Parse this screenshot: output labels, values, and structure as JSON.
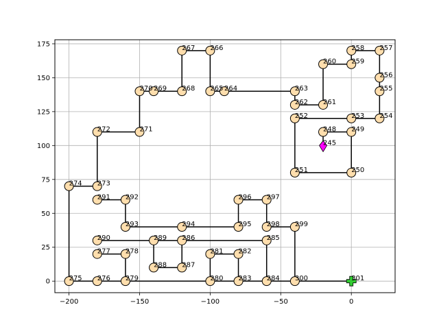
{
  "chart_data": {
    "type": "scatter",
    "title": "",
    "xlabel": "",
    "ylabel": "",
    "xlim": [
      -210,
      31
    ],
    "ylim": [
      -8.5,
      178
    ],
    "grid": true,
    "x_ticks": [
      -200,
      -150,
      -100,
      -50,
      0
    ],
    "y_ticks": [
      0,
      25,
      50,
      75,
      100,
      125,
      150,
      175
    ],
    "x_tick_labels": [
      "−200",
      "−150",
      "−100",
      "−50",
      "0"
    ],
    "y_tick_labels": [
      "0",
      "25",
      "50",
      "75",
      "100",
      "125",
      "150",
      "175"
    ],
    "colors": {
      "node_fill": "#ffdead",
      "edge": "#000000",
      "start_marker": "#ff00ff",
      "end_marker": "#33cc33",
      "grid": "#b0b0b0"
    },
    "path_points": [
      {
        "id": "245",
        "x": -20,
        "y": 100
      },
      {
        "id": "248",
        "x": -20,
        "y": 110
      },
      {
        "id": "249",
        "x": 0,
        "y": 110
      },
      {
        "id": "250",
        "x": 0,
        "y": 80
      },
      {
        "id": "251",
        "x": -40,
        "y": 80
      },
      {
        "id": "252",
        "x": -40,
        "y": 120
      },
      {
        "id": "253",
        "x": 0,
        "y": 120
      },
      {
        "id": "254",
        "x": 20,
        "y": 120
      },
      {
        "id": "255",
        "x": 20,
        "y": 140
      },
      {
        "id": "256",
        "x": 20,
        "y": 150
      },
      {
        "id": "257",
        "x": 20,
        "y": 170
      },
      {
        "id": "258",
        "x": 0,
        "y": 170
      },
      {
        "id": "259",
        "x": 0,
        "y": 160
      },
      {
        "id": "260",
        "x": -20,
        "y": 160
      },
      {
        "id": "261",
        "x": -20,
        "y": 130
      },
      {
        "id": "262",
        "x": -40,
        "y": 130
      },
      {
        "id": "263",
        "x": -40,
        "y": 140
      },
      {
        "id": "264",
        "x": -90,
        "y": 140
      },
      {
        "id": "265",
        "x": -100,
        "y": 140
      },
      {
        "id": "266",
        "x": -100,
        "y": 170
      },
      {
        "id": "267",
        "x": -120,
        "y": 170
      },
      {
        "id": "268",
        "x": -120,
        "y": 140
      },
      {
        "id": "269",
        "x": -140,
        "y": 140
      },
      {
        "id": "270",
        "x": -150,
        "y": 140
      },
      {
        "id": "271",
        "x": -150,
        "y": 110
      },
      {
        "id": "272",
        "x": -180,
        "y": 110
      },
      {
        "id": "273",
        "x": -180,
        "y": 70
      },
      {
        "id": "274",
        "x": -200,
        "y": 70
      },
      {
        "id": "275",
        "x": -200,
        "y": 0
      },
      {
        "id": "276",
        "x": -180,
        "y": 0
      },
      {
        "id": "279",
        "x": -160,
        "y": 0
      },
      {
        "id": "280",
        "x": -100,
        "y": 0
      },
      {
        "id": "283",
        "x": -80,
        "y": 0
      },
      {
        "id": "284",
        "x": -60,
        "y": 0
      },
      {
        "id": "300",
        "x": -40,
        "y": 0
      },
      {
        "id": "301",
        "x": 0,
        "y": 0
      }
    ],
    "extra_points": [
      {
        "id": "277",
        "x": -180,
        "y": 20
      },
      {
        "id": "278",
        "x": -160,
        "y": 20
      },
      {
        "id": "281",
        "x": -100,
        "y": 20
      },
      {
        "id": "282",
        "x": -80,
        "y": 20
      },
      {
        "id": "285",
        "x": -60,
        "y": 30
      },
      {
        "id": "286",
        "x": -120,
        "y": 30
      },
      {
        "id": "287",
        "x": -120,
        "y": 10
      },
      {
        "id": "288",
        "x": -140,
        "y": 10
      },
      {
        "id": "289",
        "x": -140,
        "y": 30
      },
      {
        "id": "290",
        "x": -180,
        "y": 30
      },
      {
        "id": "291",
        "x": -180,
        "y": 60
      },
      {
        "id": "292",
        "x": -160,
        "y": 60
      },
      {
        "id": "293",
        "x": -160,
        "y": 40
      },
      {
        "id": "294",
        "x": -120,
        "y": 40
      },
      {
        "id": "295",
        "x": -80,
        "y": 40
      },
      {
        "id": "296",
        "x": -80,
        "y": 60
      },
      {
        "id": "297",
        "x": -60,
        "y": 60
      },
      {
        "id": "298",
        "x": -60,
        "y": 40
      },
      {
        "id": "299",
        "x": -40,
        "y": 40
      }
    ],
    "extra_edges": [
      [
        "277",
        "278"
      ],
      [
        "281",
        "282"
      ],
      [
        "286",
        "287"
      ],
      [
        "287",
        "288"
      ],
      [
        "288",
        "289"
      ],
      [
        "290",
        "289"
      ],
      [
        "289",
        "286"
      ],
      [
        "286",
        "285"
      ],
      [
        "291",
        "292"
      ],
      [
        "292",
        "293"
      ],
      [
        "293",
        "294"
      ],
      [
        "294",
        "295"
      ],
      [
        "295",
        "296"
      ],
      [
        "296",
        "297"
      ],
      [
        "297",
        "298"
      ],
      [
        "298",
        "299"
      ],
      [
        "299",
        "300"
      ],
      [
        "281",
        "280"
      ],
      [
        "282",
        "283"
      ],
      [
        "285",
        "284"
      ],
      [
        "278",
        "279"
      ]
    ],
    "start_id": "245",
    "end_id": "301"
  }
}
